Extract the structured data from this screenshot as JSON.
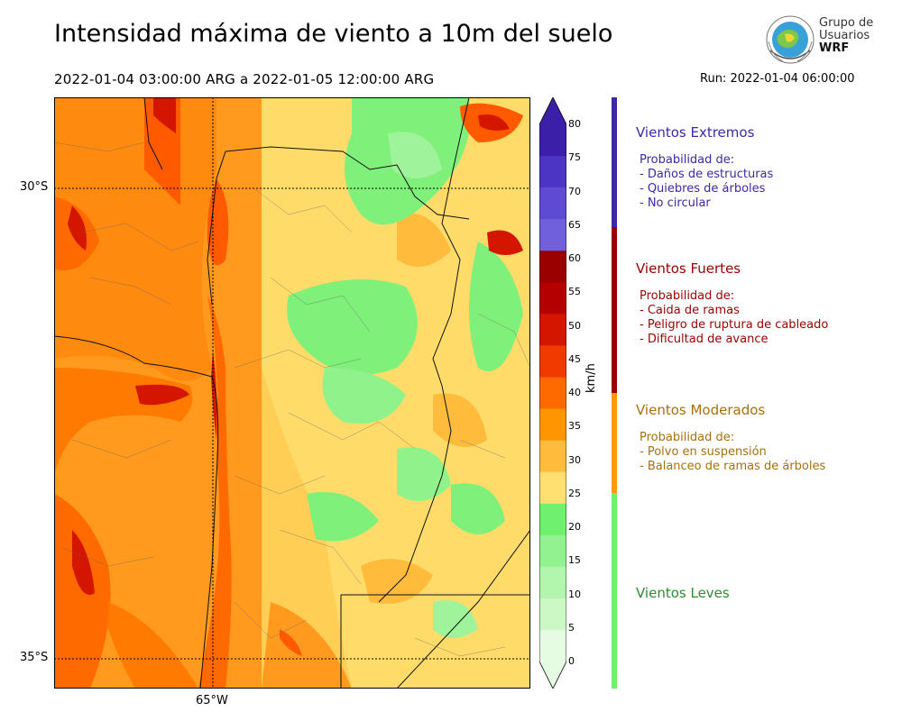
{
  "title": "Intensidad máxima de viento a 10m del suelo",
  "subtitle": "2022-01-04 03:00:00 ARG  a  2022-01-05 12:00:00 ARG",
  "run": "Run: 2022-01-04 06:00:00",
  "logo": {
    "line1": "Grupo de",
    "line2": "Usuarios",
    "line3": "WRF"
  },
  "map": {
    "lat_labels": [
      "30°S",
      "35°S"
    ],
    "lon_labels": [
      "65°W"
    ]
  },
  "colorbar": {
    "units": "km/h",
    "ticks": [
      "80",
      "75",
      "70",
      "65",
      "60",
      "55",
      "50",
      "45",
      "40",
      "35",
      "30",
      "25",
      "20",
      "15",
      "10",
      "5",
      "0"
    ],
    "colors": [
      "#3b1fa8",
      "#4c35c4",
      "#5f4bd3",
      "#7160dc",
      "#9b0000",
      "#b50000",
      "#d41500",
      "#f03a00",
      "#ff6a00",
      "#ff9500",
      "#ffbb3c",
      "#ffe070",
      "#6ff06f",
      "#92f28f",
      "#b2f5ad",
      "#ccf8c6",
      "#e6fce2"
    ]
  },
  "categories": [
    {
      "title": "Vientos Extremos",
      "color": "#3c28a6",
      "lines": [
        "Probabilidad de:",
        "- Daños de estructuras",
        "- Quiebres de árboles",
        "- No circular"
      ]
    },
    {
      "title": "Vientos Fuertes",
      "color": "#9b0000",
      "lines": [
        "Probabilidad de:",
        "- Caida de ramas",
        "- Peligro de ruptura de cableado",
        "- Dificultad de avance"
      ]
    },
    {
      "title": "Vientos Moderados",
      "color": "#a8700b",
      "lines": [
        "Probabilidad de:",
        "- Polvo en suspensión",
        "- Balanceo de ramas de árboles"
      ]
    },
    {
      "title": "Vientos Leves",
      "color": "#2e8b2e",
      "lines": []
    }
  ]
}
